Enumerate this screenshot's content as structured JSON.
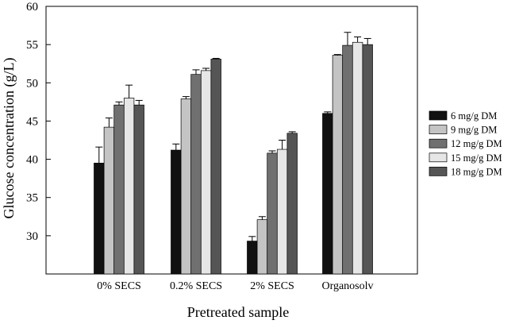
{
  "chart_data": {
    "type": "bar",
    "title": "",
    "xlabel": "Pretreated sample",
    "ylabel": "Glucose concentration (g/L)",
    "ylim": [
      25,
      60
    ],
    "yticks": [
      30,
      35,
      40,
      45,
      50,
      55,
      60
    ],
    "categories": [
      "0% SECS",
      "0.2% SECS",
      "2% SECS",
      "Organosolv"
    ],
    "series": [
      {
        "name": "6 mg/g DM",
        "color": "#111111",
        "values": [
          39.5,
          41.2,
          29.3,
          46.0
        ],
        "errors": [
          2.1,
          0.8,
          0.6,
          0.2
        ]
      },
      {
        "name": "9 mg/g DM",
        "color": "#c4c4c4",
        "values": [
          44.2,
          47.9,
          32.1,
          53.6
        ],
        "errors": [
          1.2,
          0.3,
          0.4,
          0.1
        ]
      },
      {
        "name": "12 mg/g DM",
        "color": "#707070",
        "values": [
          47.1,
          51.1,
          40.8,
          54.9
        ],
        "errors": [
          0.4,
          0.6,
          0.3,
          1.7
        ]
      },
      {
        "name": "15 mg/g DM",
        "color": "#e6e6e6",
        "values": [
          48.0,
          51.6,
          41.3,
          55.3
        ],
        "errors": [
          1.7,
          0.3,
          1.2,
          0.7
        ]
      },
      {
        "name": "18 mg/g DM",
        "color": "#555555",
        "values": [
          47.1,
          53.1,
          43.4,
          55.0
        ],
        "errors": [
          0.6,
          0.1,
          0.2,
          0.8
        ]
      }
    ],
    "legend": "right",
    "grid": false
  }
}
